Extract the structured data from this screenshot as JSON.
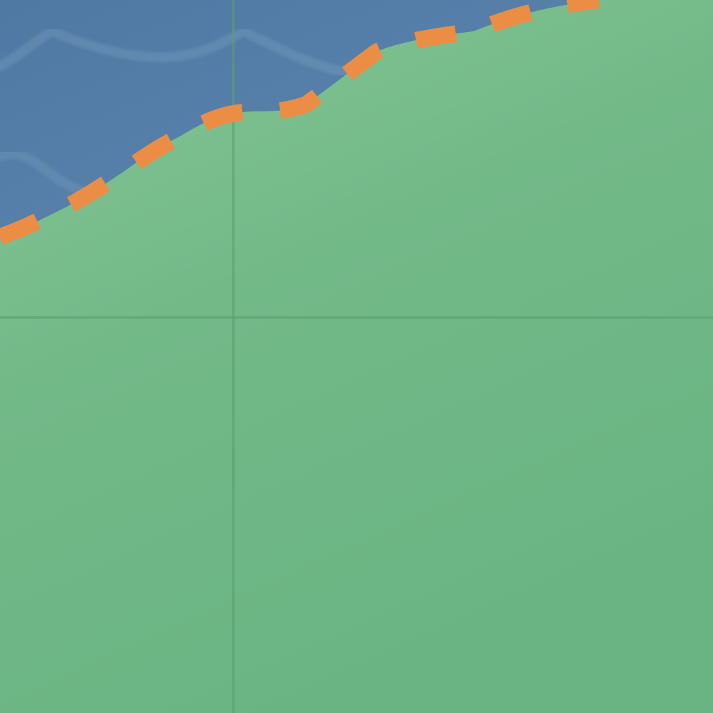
{
  "map": {
    "colors": {
      "water": "#5680a8",
      "water_wave": "#7ea3c4",
      "land_light": "#82c393",
      "land": "#6db785",
      "land_shadow": "#64a97a",
      "boundary_dash": "#ec8d45",
      "grid_line": "#5e9f70"
    },
    "features": [
      "water-area",
      "land-area",
      "dashed-boundary",
      "grid-lines"
    ]
  }
}
